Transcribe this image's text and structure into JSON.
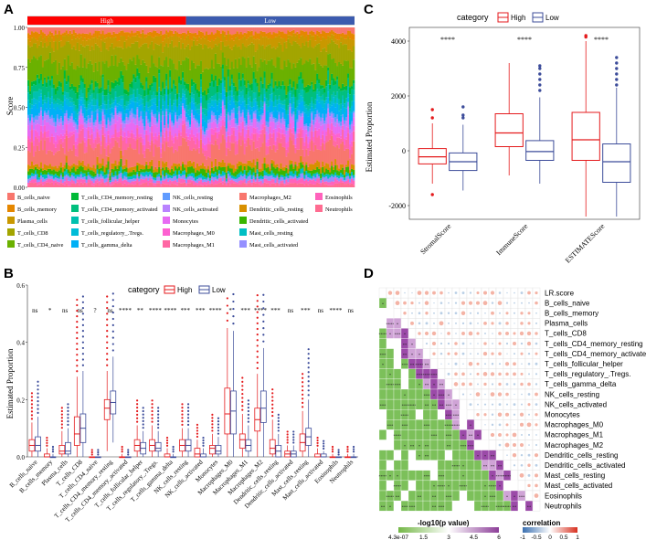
{
  "panels": {
    "a": "A",
    "b": "B",
    "c": "C",
    "d": "D"
  },
  "chart_data": [
    {
      "id": "A",
      "type": "area",
      "title": "",
      "ylabel": "Score",
      "ylim": [
        0,
        1
      ],
      "ytick_labels": [
        "0.00",
        "0.25",
        "0.50",
        "0.75",
        "1.00"
      ],
      "ytick_values": [
        0,
        0.25,
        0.5,
        0.75,
        1
      ],
      "group_bar": {
        "labels": [
          "High",
          "Low"
        ],
        "colors": [
          "#ff0000",
          "#3c5bae"
        ],
        "split": 0.485
      },
      "stack_fractions": [
        0.03,
        0.03,
        0.05,
        0.1,
        0.12,
        0.03,
        0.06,
        0.03,
        0.03,
        0.05,
        0.02,
        0.03,
        0.05,
        0.03,
        0.06,
        0.1,
        0.03,
        0.03,
        0.02,
        0.02,
        0.02,
        0.02
      ],
      "legend": [
        [
          "B_cells_naive",
          "B_cells_memory",
          "Plasma_cells",
          "T_cells_CD8",
          "T_cells_CD4_naive"
        ],
        [
          "T_cells_CD4_memory_resting",
          "T_cells_CD4_memory_activated",
          "T_cells_follicular_helper",
          "T_cells_regulatory_.Tregs.",
          "T_cells_gamma_delta"
        ],
        [
          "NK_cells_resting",
          "NK_cells_activated",
          "Monocytes",
          "Macrophages_M0",
          "Macrophages_M1"
        ],
        [
          "Macrophages_M2",
          "Dendritic_cells_resting",
          "Dendritic_cells_activated",
          "Mast_cells_resting",
          "Mast_cells_activated"
        ],
        [
          "Eosinophils",
          "Neutrophils"
        ]
      ],
      "colors": [
        "#f8766d",
        "#e58700",
        "#c99800",
        "#a3a500",
        "#6bb100",
        "#00ba38",
        "#00bf7d",
        "#00c0af",
        "#00bcd8",
        "#00b0f6",
        "#619cff",
        "#b983ff",
        "#e76bf3",
        "#fd61d1",
        "#ff67a4",
        "#f8766d",
        "#d89000",
        "#39b600",
        "#00bfc4",
        "#9590ff",
        "#ff62bc",
        "#ff6c91"
      ]
    },
    {
      "id": "B",
      "type": "box",
      "legend_title": "category",
      "legend": [
        {
          "name": "High",
          "color": "#e41a1c"
        },
        {
          "name": "Low",
          "color": "#3c4c9a"
        }
      ],
      "ylabel": "Estimated Proportion",
      "ylim": [
        0,
        0.6
      ],
      "ytick_labels": [
        "0.0",
        "0.2",
        "0.4",
        "0.6"
      ],
      "ytick_values": [
        0,
        0.2,
        0.4,
        0.6
      ],
      "categories": [
        "B_cells_naive",
        "B_cells_memory",
        "Plasma_cells",
        "T_cells_CD8",
        "T_cells_CD4_naive",
        "T_cells_CD4_memory_resting",
        "T_cells_CD4_memory_activated",
        "T_cells_follicular_helper",
        "T_cells_regulatory_.Tregs.",
        "T_cells_gamma_delta",
        "NK_cells_resting",
        "NK_cells_activated",
        "Monocytes",
        "Macrophages_M0",
        "Macrophages_M1",
        "Macrophages_M2",
        "Dendritic_cells_resting",
        "Dendritic_cells_activated",
        "Mast_cells_resting",
        "Mast_cells_activated",
        "Eosinophils",
        "Neutrophils"
      ],
      "significance": [
        "ns",
        "*",
        "ns",
        "ns",
        "?",
        "ns",
        "****",
        "**",
        "****",
        "****",
        "***",
        "***",
        "****",
        "*",
        "***",
        "****",
        "***",
        "ns",
        "***",
        "ns",
        "****",
        "ns"
      ],
      "series": [
        {
          "name": "High",
          "stats": [
            [
              0,
              0.02,
              0.04,
              0.06,
              0.12
            ],
            [
              0,
              0.0,
              0.0,
              0.01,
              0.03
            ],
            [
              0,
              0.01,
              0.02,
              0.04,
              0.09
            ],
            [
              0,
              0.04,
              0.08,
              0.14,
              0.28
            ],
            [
              0,
              0,
              0,
              0,
              0
            ],
            [
              0.02,
              0.13,
              0.17,
              0.2,
              0.3
            ],
            [
              0,
              0,
              0,
              0,
              0.01
            ],
            [
              0,
              0.02,
              0.04,
              0.06,
              0.11
            ],
            [
              0,
              0.02,
              0.04,
              0.06,
              0.11
            ],
            [
              0,
              0,
              0,
              0.01,
              0.03
            ],
            [
              0,
              0.02,
              0.04,
              0.06,
              0.1
            ],
            [
              0,
              0,
              0.01,
              0.03,
              0.06
            ],
            [
              0,
              0.01,
              0.03,
              0.04,
              0.08
            ],
            [
              0,
              0.08,
              0.15,
              0.24,
              0.45
            ],
            [
              0,
              0.03,
              0.06,
              0.08,
              0.15
            ],
            [
              0,
              0.09,
              0.13,
              0.17,
              0.29
            ],
            [
              0,
              0.01,
              0.03,
              0.06,
              0.13
            ],
            [
              0,
              0,
              0.01,
              0.02,
              0.04
            ],
            [
              0,
              0.02,
              0.05,
              0.08,
              0.16
            ],
            [
              0,
              0,
              0,
              0.01,
              0.03
            ],
            [
              0,
              0,
              0,
              0,
              0.01
            ],
            [
              0,
              0,
              0,
              0,
              0.01
            ]
          ]
        },
        {
          "name": "Low",
          "stats": [
            [
              0,
              0.02,
              0.04,
              0.07,
              0.14
            ],
            [
              0,
              0.0,
              0.0,
              0.0,
              0.01
            ],
            [
              0,
              0.01,
              0.02,
              0.05,
              0.1
            ],
            [
              0,
              0.05,
              0.1,
              0.15,
              0.3
            ],
            [
              0,
              0,
              0,
              0,
              0
            ],
            [
              0.05,
              0.15,
              0.19,
              0.23,
              0.35
            ],
            [
              0,
              0,
              0,
              0,
              0
            ],
            [
              0,
              0.01,
              0.03,
              0.05,
              0.09
            ],
            [
              0,
              0.02,
              0.03,
              0.05,
              0.09
            ],
            [
              0,
              0,
              0,
              0,
              0.01
            ],
            [
              0,
              0.02,
              0.04,
              0.06,
              0.1
            ],
            [
              0,
              0,
              0,
              0.01,
              0.03
            ],
            [
              0,
              0.01,
              0.02,
              0.04,
              0.07
            ],
            [
              0,
              0.08,
              0.16,
              0.23,
              0.44
            ],
            [
              0,
              0.02,
              0.04,
              0.06,
              0.11
            ],
            [
              0,
              0.12,
              0.17,
              0.23,
              0.38
            ],
            [
              0,
              0,
              0.02,
              0.04,
              0.08
            ],
            [
              0,
              0,
              0.01,
              0.02,
              0.04
            ],
            [
              0,
              0.04,
              0.07,
              0.1,
              0.2
            ],
            [
              0,
              0,
              0,
              0.01,
              0.02
            ],
            [
              0,
              0,
              0,
              0,
              0
            ],
            [
              0,
              0,
              0,
              0,
              0.01
            ]
          ]
        }
      ]
    },
    {
      "id": "C",
      "type": "box",
      "legend_title": "category",
      "legend": [
        {
          "name": "High",
          "color": "#e41a1c"
        },
        {
          "name": "Low",
          "color": "#3c4c9a"
        }
      ],
      "ylabel": "Estimated Proportion",
      "ylim": [
        -2500,
        4500
      ],
      "ytick_labels": [
        "-2000",
        "0",
        "2000",
        "4000"
      ],
      "ytick_values": [
        -2000,
        0,
        2000,
        4000
      ],
      "categories": [
        "StromalScore",
        "ImmuneScore",
        "ESTIMATEScore"
      ],
      "significance": [
        "****",
        "****",
        "****"
      ],
      "series": [
        {
          "name": "High",
          "stats": [
            [
              -1200,
              -480,
              -220,
              80,
              1000
            ],
            [
              -900,
              150,
              650,
              1350,
              3200
            ],
            [
              -2400,
              -350,
              400,
              1400,
              4000
            ]
          ],
          "outliers": [
            [
              1500,
              1200,
              -1600
            ],
            [],
            [
              4150,
              4200
            ]
          ]
        },
        {
          "name": "Low",
          "stats": [
            [
              -1450,
              -720,
              -400,
              -80,
              950
            ],
            [
              -1200,
              -350,
              -30,
              370,
              1950
            ],
            [
              -2400,
              -1150,
              -400,
              250,
              2300
            ]
          ],
          "outliers": [
            [
              1600,
              1300,
              1200
            ],
            [
              2200,
              2400,
              2600,
              2800,
              3000,
              3100
            ],
            [
              2400,
              2600,
              2800,
              3000,
              3200,
              3400
            ]
          ]
        }
      ]
    },
    {
      "id": "D",
      "type": "heatmap",
      "labels": [
        "LR.score",
        "B_cells_naive",
        "B_cells_memory",
        "Plasma_cells",
        "T_cells_CD8",
        "T_cells_CD4_memory_resting",
        "T_cells_CD4_memory_activated",
        "T_cells_follicular_helper",
        "T_cells_regulatory_.Tregs.",
        "T_cells_gamma_delta",
        "NK_cells_resting",
        "NK_cells_activated",
        "Monocytes",
        "Macrophages_M0",
        "Macrophages_M1",
        "Macrophages_M2",
        "Dendritic_cells_resting",
        "Dendritic_cells_activated",
        "Mast_cells_resting",
        "Mast_cells_activated",
        "Eosinophils",
        "Neutrophils"
      ],
      "legend_pvalue": {
        "title": "-log10(p value)",
        "ticks": [
          "4.3e-07",
          "1.5",
          "3",
          "4.5",
          "6"
        ],
        "colors": [
          "#74b747",
          "#ffffff",
          "#8c3e98"
        ]
      },
      "legend_corr": {
        "title": "correlation",
        "ticks": [
          "-1",
          "-0.5",
          "0",
          "0.5",
          "1"
        ],
        "colors": [
          "#3a6fb0",
          "#ffffff",
          "#d7301f"
        ]
      },
      "significance_marks": [
        "*",
        "**",
        "***",
        "****"
      ]
    }
  ]
}
